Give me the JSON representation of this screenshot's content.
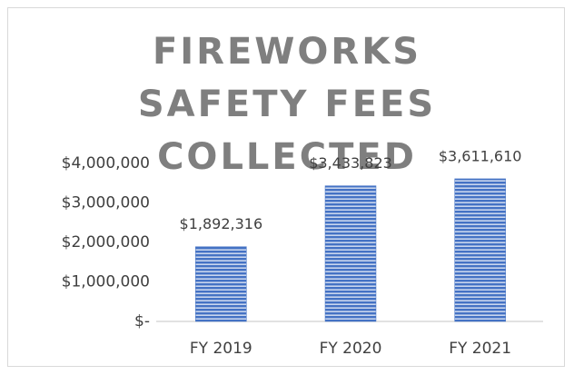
{
  "chart_data": {
    "type": "bar",
    "title": "FIREWORKS SAFETY FEES COLLECTED",
    "categories": [
      "FY 2019",
      "FY 2020",
      "FY 2021"
    ],
    "values": [
      1892316,
      3433823,
      3611610
    ],
    "value_labels": [
      "$1,892,316",
      "$3,433,823",
      "$3,611,610"
    ],
    "color": "#4472c4",
    "ylim": [
      0,
      4000000
    ],
    "yticks": [
      {
        "value": 0,
        "label": "$-"
      },
      {
        "value": 1000000,
        "label": "$1,000,000"
      },
      {
        "value": 2000000,
        "label": "$2,000,000"
      },
      {
        "value": 3000000,
        "label": "$3,000,000"
      },
      {
        "value": 4000000,
        "label": "$4,000,000"
      }
    ],
    "grid": false
  }
}
